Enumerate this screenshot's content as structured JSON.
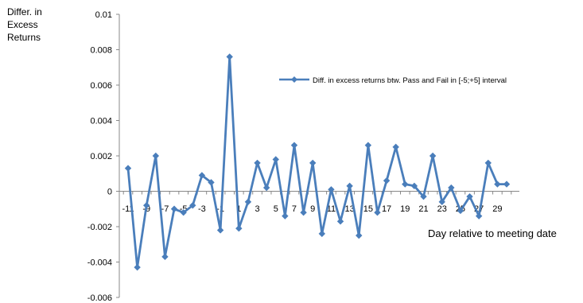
{
  "chart_data": {
    "type": "line",
    "title": "",
    "ylabel_lines": [
      "Differ. in",
      "Excess",
      "Returns"
    ],
    "xlabel": "Day relative to meeting date",
    "ylim": [
      -0.006,
      0.01
    ],
    "yticks": [
      0.01,
      0.008,
      0.006,
      0.004,
      0.002,
      0,
      -0.002,
      -0.004,
      -0.006
    ],
    "ytick_labels": [
      "0.01",
      "0.008",
      "0.006",
      "0.004",
      "0.002",
      "0",
      "-0.002",
      "-0.004",
      "-0.006"
    ],
    "x": [
      -11,
      -10,
      -9,
      -8,
      -7,
      -6,
      -5,
      -4,
      -3,
      -2,
      -1,
      0,
      1,
      2,
      3,
      4,
      5,
      6,
      7,
      8,
      9,
      10,
      11,
      12,
      13,
      14,
      15,
      16,
      17,
      18,
      19,
      20,
      21,
      22,
      23,
      24,
      25,
      26,
      27,
      28,
      29,
      30
    ],
    "xtick_labels": [
      "-11",
      "-9",
      "-7",
      "-5",
      "-3",
      "-1",
      "1",
      "3",
      "5",
      "7",
      "9",
      "11",
      "13",
      "15",
      "17",
      "19",
      "21",
      "23",
      "25",
      "27",
      "29"
    ],
    "series": [
      {
        "name": "Diff. in excess returns btw. Pass and Fail in [-5;+5] interval",
        "color": "#4a7ebb",
        "values": [
          0.0013,
          -0.0043,
          -0.0008,
          0.002,
          -0.0037,
          -0.001,
          -0.0012,
          -0.0008,
          0.0009,
          0.0005,
          -0.0022,
          0.0076,
          -0.0021,
          -0.0006,
          0.0016,
          0.0002,
          0.0018,
          -0.0014,
          0.0026,
          -0.0012,
          0.0016,
          -0.0024,
          0.0001,
          -0.0017,
          0.0003,
          -0.0025,
          0.0026,
          -0.0012,
          0.0006,
          0.0025,
          0.0004,
          0.0003,
          -0.0003,
          0.002,
          -0.0006,
          0.0002,
          -0.0011,
          -0.0003,
          -0.0014,
          0.0016,
          0.0004,
          0.0004
        ]
      }
    ],
    "legend_position": "top-right",
    "grid": false
  }
}
